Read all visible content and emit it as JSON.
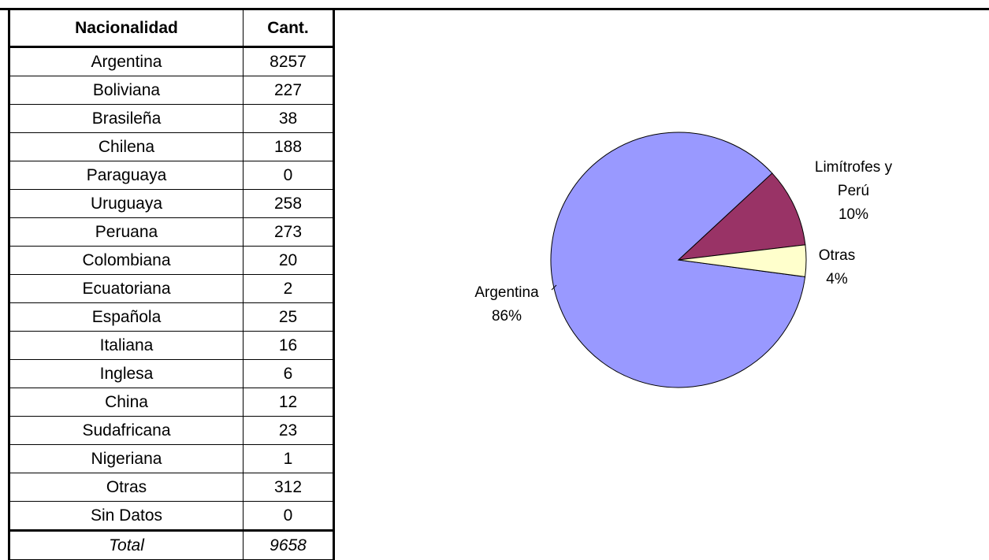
{
  "table": {
    "header": [
      "Nacionalidad",
      "Cant."
    ],
    "rows": [
      [
        "Argentina",
        8257
      ],
      [
        "Boliviana",
        227
      ],
      [
        "Brasileña",
        38
      ],
      [
        "Chilena",
        188
      ],
      [
        "Paraguaya",
        0
      ],
      [
        "Uruguaya",
        258
      ],
      [
        "Peruana",
        273
      ],
      [
        "Colombiana",
        20
      ],
      [
        "Ecuatoriana",
        2
      ],
      [
        "Española",
        25
      ],
      [
        "Italiana",
        16
      ],
      [
        "Inglesa",
        6
      ],
      [
        "China",
        12
      ],
      [
        "Sudafricana",
        23
      ],
      [
        "Nigeriana",
        1
      ],
      [
        "Otras",
        312
      ],
      [
        "Sin Datos",
        0
      ]
    ],
    "total": [
      "Total",
      9658
    ]
  },
  "chart_data": {
    "type": "pie",
    "categories": [
      "Argentina",
      "Limítrofes y Perú",
      "Otras"
    ],
    "values": [
      86,
      10,
      4
    ],
    "value_labels": [
      "86%",
      "10%",
      "4%"
    ],
    "colors": [
      "#9999ff",
      "#993366",
      "#ffffcc"
    ]
  }
}
